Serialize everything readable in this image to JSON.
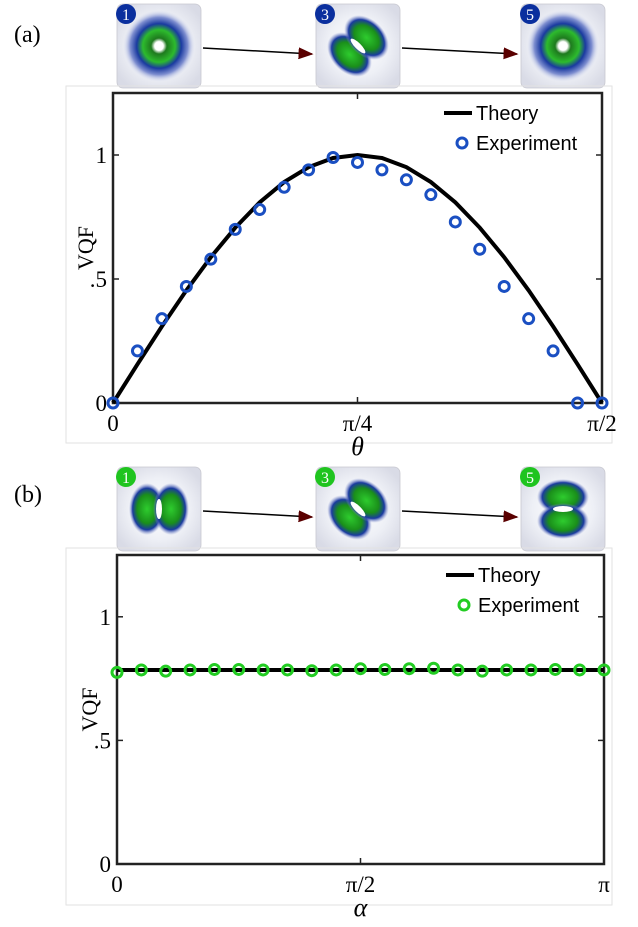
{
  "panels": [
    {
      "label": "(a)",
      "insets": [
        {
          "number": "1",
          "pattern": "ring"
        },
        {
          "number": "3",
          "pattern": "diagonal-lobes"
        },
        {
          "number": "5",
          "pattern": "ring"
        }
      ],
      "badge_color": "#0a2f9e"
    },
    {
      "label": "(b)",
      "insets": [
        {
          "number": "1",
          "pattern": "vertical-lobes"
        },
        {
          "number": "3",
          "pattern": "diagonal-lobes"
        },
        {
          "number": "5",
          "pattern": "horizontal-lobes"
        }
      ],
      "badge_color": "#1fc41f"
    }
  ],
  "chart_data": [
    {
      "type": "line",
      "ylabel": "VQF",
      "xlabel": "θ",
      "xlim": [
        0,
        1.5708
      ],
      "ylim": [
        0,
        1.25
      ],
      "xticks": [
        {
          "value": 0,
          "label": "0"
        },
        {
          "value": 0.7854,
          "label": "π/4"
        },
        {
          "value": 1.5708,
          "label": "π/2"
        }
      ],
      "yticks": [
        {
          "value": 0,
          "label": "0"
        },
        {
          "value": 0.5,
          "label": ".5"
        },
        {
          "value": 1,
          "label": "1"
        }
      ],
      "legend_position": "top-right",
      "series": [
        {
          "name": "Theory",
          "style": "line",
          "color": "#000000",
          "x": [
            0,
            0.0785,
            0.1571,
            0.2356,
            0.3142,
            0.3927,
            0.4712,
            0.5498,
            0.6283,
            0.7069,
            0.7854,
            0.8639,
            0.9425,
            1.021,
            1.0996,
            1.1781,
            1.2566,
            1.3352,
            1.4137,
            1.4923,
            1.5708
          ],
          "y": [
            0,
            0.156,
            0.309,
            0.454,
            0.588,
            0.707,
            0.809,
            0.891,
            0.951,
            0.988,
            1.0,
            0.988,
            0.951,
            0.891,
            0.809,
            0.707,
            0.588,
            0.454,
            0.309,
            0.156,
            0
          ]
        },
        {
          "name": "Experiment",
          "style": "circle",
          "color": "#1a4fc2",
          "x": [
            0,
            0.0785,
            0.1571,
            0.2356,
            0.3142,
            0.3927,
            0.4712,
            0.5498,
            0.6283,
            0.7069,
            0.7854,
            0.8639,
            0.9425,
            1.021,
            1.0996,
            1.1781,
            1.2566,
            1.3352,
            1.4137,
            1.4923,
            1.5708
          ],
          "y": [
            0,
            0.21,
            0.34,
            0.47,
            0.58,
            0.7,
            0.78,
            0.87,
            0.94,
            0.99,
            0.97,
            0.94,
            0.9,
            0.84,
            0.73,
            0.62,
            0.47,
            0.34,
            0.21,
            0,
            0
          ]
        }
      ]
    },
    {
      "type": "line",
      "ylabel": "VQF",
      "xlabel": "α",
      "xlim": [
        0,
        3.1416
      ],
      "ylim": [
        0,
        1.25
      ],
      "xticks": [
        {
          "value": 0,
          "label": "0"
        },
        {
          "value": 1.5708,
          "label": "π/2"
        },
        {
          "value": 3.1416,
          "label": "π"
        }
      ],
      "yticks": [
        {
          "value": 0,
          "label": "0"
        },
        {
          "value": 0.5,
          "label": ".5"
        },
        {
          "value": 1,
          "label": "1"
        }
      ],
      "legend_position": "top-right",
      "series": [
        {
          "name": "Theory",
          "style": "line",
          "color": "#000000",
          "x": [
            0,
            3.1416
          ],
          "y": [
            0.785,
            0.785
          ]
        },
        {
          "name": "Experiment",
          "style": "circle",
          "color": "#22cc22",
          "x": [
            0,
            0.1571,
            0.3142,
            0.4712,
            0.6283,
            0.7854,
            0.9425,
            1.0996,
            1.2566,
            1.4137,
            1.5708,
            1.7279,
            1.885,
            2.042,
            2.1991,
            2.3562,
            2.5133,
            2.6704,
            2.8274,
            2.9845,
            3.1416
          ],
          "y": [
            0.775,
            0.785,
            0.78,
            0.785,
            0.787,
            0.787,
            0.785,
            0.785,
            0.782,
            0.785,
            0.79,
            0.787,
            0.79,
            0.792,
            0.785,
            0.78,
            0.785,
            0.785,
            0.787,
            0.785,
            0.785
          ]
        }
      ]
    }
  ]
}
